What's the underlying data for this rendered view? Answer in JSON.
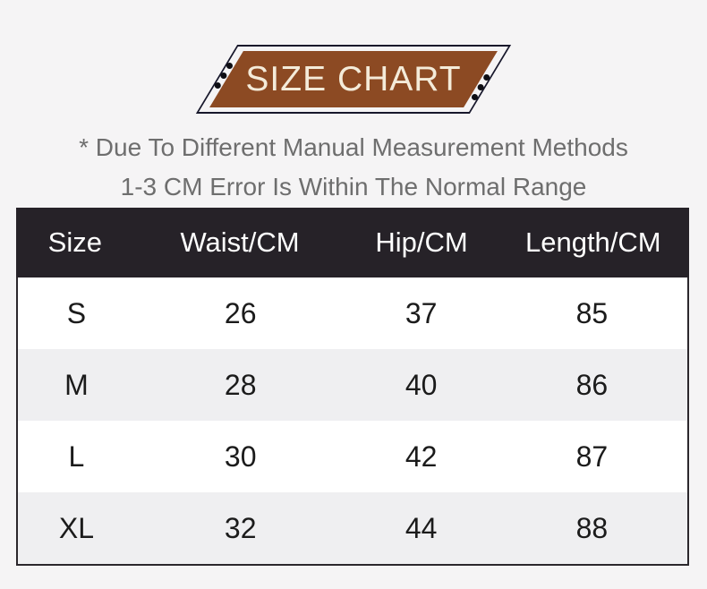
{
  "colors": {
    "page_background": "#f5f4f5",
    "banner_fill": "#8c4a23",
    "banner_text": "#f4ebd9",
    "banner_outline": "#17172b",
    "disclaimer_text": "#6e6e6e",
    "header_background": "#262228",
    "header_text": "#ffffff",
    "row_alt_background": "#efeff1",
    "body_text": "#1b1b1b"
  },
  "disclaimer": {
    "line1": "* Due To Different Manual Measurement Methods",
    "line2": "1-3 CM Error Is Within The Normal Range"
  },
  "chart_data": {
    "type": "table",
    "title": "SIZE CHART",
    "columns": [
      "Size",
      "Waist/CM",
      "Hip/CM",
      "Length/CM"
    ],
    "rows": [
      [
        "S",
        "26",
        "37",
        "85"
      ],
      [
        "M",
        "28",
        "40",
        "86"
      ],
      [
        "L",
        "30",
        "42",
        "87"
      ],
      [
        "XL",
        "32",
        "44",
        "88"
      ]
    ],
    "units": "CM",
    "note": "1-3 CM measurement error is within the normal range"
  }
}
